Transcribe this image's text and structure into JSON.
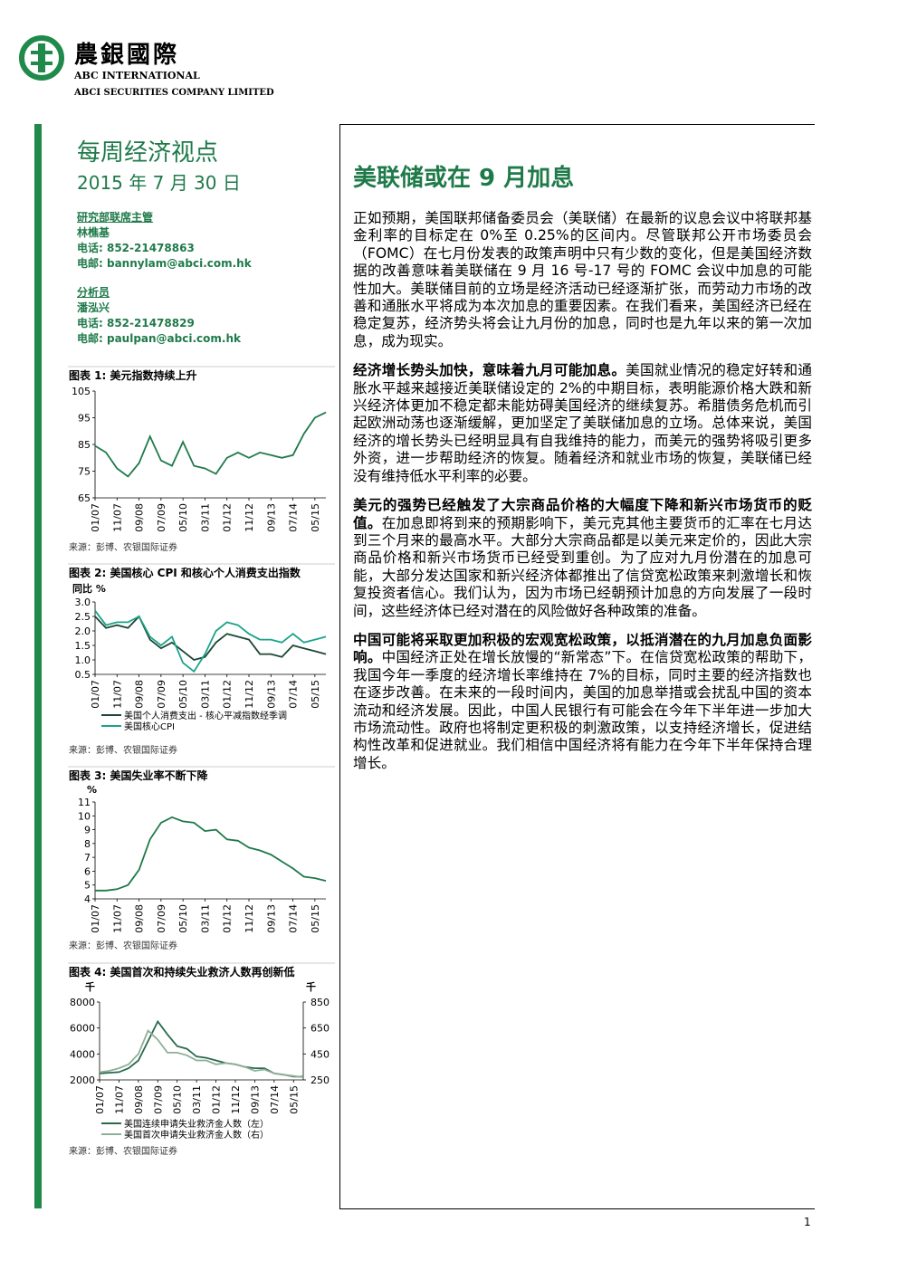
{
  "header": {
    "brand": "農銀國際",
    "brand_en": "ABC INTERNATIONAL",
    "company": "ABCI SECURITIES COMPANY LIMITED"
  },
  "sidebar": {
    "report": "每周经济视点",
    "date": "2015 年 7 月 30 日",
    "analysts": [
      {
        "role": "研究部联席主管",
        "name": "林樵基",
        "phone": "电话: 852-21478863",
        "email": "电邮: bannylam@abci.com.hk"
      },
      {
        "role": "分析员",
        "name": "潘泓兴",
        "phone": "电话: 852-21478829",
        "email": "电邮: paulpan@abci.com.hk"
      }
    ]
  },
  "figures": [
    {
      "type": "line",
      "title": "图表 1: 美元指数持续上升",
      "source": "来源：彭博、农银国际证券",
      "categories": [
        "01/07",
        null,
        "11/07",
        null,
        "09/08",
        null,
        "07/09",
        null,
        "05/10",
        null,
        "03/11",
        null,
        "01/12",
        null,
        "11/12",
        null,
        "09/13",
        null,
        "07/14",
        null,
        "05/15",
        null
      ],
      "color": "#1f7a4a",
      "values": [
        84.5,
        82,
        76,
        73,
        78,
        88,
        79,
        77,
        86,
        77,
        76,
        74,
        80,
        82,
        80,
        82,
        81,
        80,
        81,
        89,
        95,
        97
      ],
      "ylim": [
        65,
        105
      ],
      "yticks": [
        65,
        75,
        85,
        95,
        105
      ]
    },
    {
      "type": "line",
      "title": "图表 2: 美国核心 CPI 和核心个人消费支出指数",
      "source": "来源：彭博、农银国际证券",
      "y_label": "同比 %",
      "categories": [
        "01/07",
        null,
        "11/07",
        null,
        "09/08",
        null,
        "07/09",
        null,
        "05/10",
        null,
        "03/11",
        null,
        "01/12",
        null,
        "11/12",
        null,
        "09/13",
        null,
        "07/14",
        null,
        "05/15",
        null
      ],
      "series": [
        {
          "name": "美国个人消费支出 - 核心平减指数经季调",
          "color": "#1d4634",
          "values": [
            2.5,
            2.1,
            2.2,
            2.1,
            2.5,
            1.7,
            1.4,
            1.6,
            1.3,
            1.0,
            1.1,
            1.6,
            1.9,
            1.8,
            1.7,
            1.2,
            1.2,
            1.1,
            1.5,
            1.4,
            1.3,
            1.2
          ]
        },
        {
          "name": "美国核心CPI",
          "color": "#1aa38a",
          "values": [
            2.7,
            2.2,
            2.3,
            2.3,
            2.5,
            1.8,
            1.5,
            1.8,
            0.9,
            0.6,
            1.2,
            2.0,
            2.3,
            2.2,
            1.9,
            1.7,
            1.7,
            1.6,
            1.9,
            1.6,
            1.7,
            1.8
          ]
        }
      ],
      "ylim": [
        0.5,
        3.0
      ],
      "yticks": [
        0.5,
        {
          "value": 1,
          "label": "1.0"
        },
        1.5,
        {
          "value": 2,
          "label": "2.0"
        },
        2.5,
        {
          "value": 3,
          "label": "3.0"
        }
      ]
    },
    {
      "type": "line",
      "title": "图表 3: 美国失业率不断下降",
      "source": "来源：彭博、农银国际证券",
      "y_label": "%",
      "categories": [
        "01/07",
        null,
        "11/07",
        null,
        "09/08",
        null,
        "07/09",
        null,
        "05/10",
        null,
        "03/11",
        null,
        "01/12",
        null,
        "11/12",
        null,
        "09/13",
        null,
        "07/14",
        null,
        "05/15",
        null
      ],
      "color": "#1f7a4a",
      "values": [
        4.6,
        4.6,
        4.7,
        5.0,
        6.1,
        8.3,
        9.5,
        9.9,
        9.6,
        9.5,
        8.9,
        9.0,
        8.3,
        8.2,
        7.7,
        7.5,
        7.2,
        6.7,
        6.2,
        5.6,
        5.5,
        5.3
      ],
      "ylim": [
        4,
        11
      ],
      "yticks": [
        4,
        5,
        6,
        7,
        8,
        9,
        10,
        11
      ]
    },
    {
      "type": "line",
      "title": "图表 4: 美国首次和持续失业救济人数再创新低",
      "source": "来源：彭博、农银国际证券",
      "y_label": "千",
      "y2_label": "千",
      "categories": [
        "01/07",
        null,
        "11/07",
        null,
        "09/08",
        null,
        "07/09",
        null,
        "05/10",
        null,
        "03/11",
        null,
        "01/12",
        null,
        "11/12",
        null,
        "09/13",
        null,
        "07/14",
        null,
        "05/15",
        null
      ],
      "series": [
        {
          "name": "美国连续申请失业救济金人数（左）",
          "color": "#2a6b4c",
          "values": [
            2500,
            2550,
            2600,
            2900,
            3500,
            5000,
            6500,
            5500,
            4600,
            4400,
            3800,
            3700,
            3500,
            3300,
            3200,
            3000,
            2900,
            2900,
            2500,
            2400,
            2250,
            2250
          ]
        },
        {
          "name": "美国首次申请失业救济金人数（右）",
          "color": "#8fae98",
          "axis": "y2",
          "values": [
            310,
            320,
            340,
            370,
            450,
            630,
            560,
            460,
            460,
            440,
            400,
            400,
            370,
            380,
            370,
            350,
            320,
            330,
            300,
            290,
            280,
            270
          ]
        }
      ],
      "ylim": [
        2000,
        8000
      ],
      "yticks": [
        2000,
        4000,
        6000,
        8000
      ],
      "y2lim": [
        250,
        850
      ],
      "y2ticks": [
        250,
        450,
        650,
        850
      ]
    }
  ],
  "article": {
    "title": "美联储或在 9 月加息",
    "paragraphs": [
      {
        "text": "正如预期，美国联邦储备委员会（美联储）在最新的议息会议中将联邦基金利率的目标定在 0%至 0.25%的区间内。尽管联邦公开市场委员会（FOMC）在七月份发表的政策声明中只有少数的变化，但是美国经济数据的改善意味着美联储在 9 月 16 号-17 号的 FOMC 会议中加息的可能性加大。美联储目前的立场是经济活动已经逐渐扩张，而劳动力市场的改善和通胀水平将成为本次加息的重要因素。在我们看来，美国经济已经在稳定复苏，经济势头将会让九月份的加息，同时也是九年以来的第一次加息，成为现实。"
      },
      {
        "lead": "经济增长势头加快，意味着九月可能加息。",
        "text": "美国就业情况的稳定好转和通胀水平越来越接近美联储设定的 2%的中期目标，表明能源价格大跌和新兴经济体更加不稳定都未能妨碍美国经济的继续复苏。希腊债务危机而引起欧洲动荡也逐渐缓解，更加坚定了美联储加息的立场。总体来说，美国经济的增长势头已经明显具有自我维持的能力，而美元的强势将吸引更多外资，进一步帮助经济的恢复。随着经济和就业市场的恢复，美联储已经没有维持低水平利率的必要。"
      },
      {
        "lead": "美元的强势已经触发了大宗商品价格的大幅度下降和新兴市场货币的贬值。",
        "text": "在加息即将到来的预期影响下，美元克其他主要货币的汇率在七月达到三个月来的最高水平。大部分大宗商品都是以美元来定价的，因此大宗商品价格和新兴市场货币已经受到重创。为了应对九月份潜在的加息可能，大部分发达国家和新兴经济体都推出了信贷宽松政策来刺激增长和恢复投资者信心。我们认为，因为市场已经朝预计加息的方向发展了一段时间，这些经济体已经对潜在的风险做好各种政策的准备。"
      },
      {
        "lead": "中国可能将采取更加积极的宏观宽松政策，以抵消潜在的九月加息负面影响。",
        "text": "中国经济正处在增长放慢的“新常态”下。在信贷宽松政策的帮助下，我国今年一季度的经济增长率维持在 7%的目标，同时主要的经济指数也在逐步改善。在未来的一段时间内，美国的加息举措或会扰乱中国的资本流动和经济发展。因此，中国人民银行有可能会在今年下半年进一步加大市场流动性。政府也将制定更积极的刺激政策，以支持经济增长，促进结构性改革和促进就业。我们相信中国经济将有能力在今年下半年保持合理增长。"
      }
    ]
  },
  "footer": {
    "page": "1"
  }
}
